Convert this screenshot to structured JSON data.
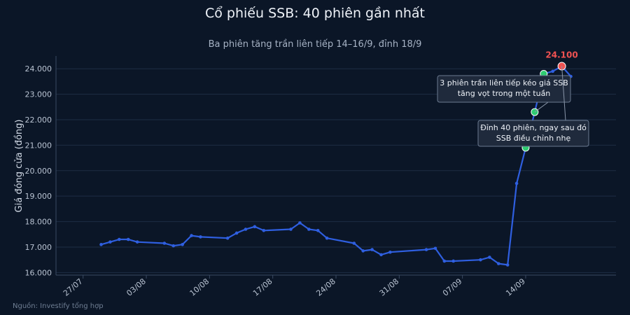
{
  "chart_data": {
    "type": "line",
    "title": "Cổ phiếu SSB: 40 phiên gần nhất",
    "subtitle": "Ba phiên tăng trần liên tiếp 14–16/9, đỉnh 18/9",
    "ylabel": "Giá đóng cửa (đồng)",
    "xlabel": "",
    "source": "Nguồn: Investify tổng hợp",
    "ylim": [
      15900,
      24500
    ],
    "yticks": [
      16000,
      17000,
      18000,
      19000,
      20000,
      21000,
      22000,
      23000,
      24000
    ],
    "ytick_labels": [
      "16.000",
      "17.000",
      "18.000",
      "19.000",
      "20.000",
      "21.000",
      "22.000",
      "23.000",
      "24.000"
    ],
    "xlim": [
      "2024-07-24",
      "2024-09-24"
    ],
    "xticks": [
      "2024-07-27",
      "2024-08-03",
      "2024-08-10",
      "2024-08-17",
      "2024-08-24",
      "2024-08-31",
      "2024-09-07",
      "2024-09-14"
    ],
    "xtick_labels": [
      "27/07",
      "03/08",
      "10/08",
      "17/08",
      "24/08",
      "31/08",
      "07/09",
      "14/09"
    ],
    "grid": true,
    "colors": {
      "line": "#2f5fe0",
      "marker_green": "#2ecc71",
      "marker_red": "#f05252",
      "grid": "#1e2d44",
      "annotation_bg": "#1f2a3c",
      "annotation_border": "#6b7a90"
    },
    "series": [
      {
        "x": [
          "2024-07-29",
          "2024-07-30",
          "2024-07-31",
          "2024-08-01",
          "2024-08-02",
          "2024-08-05",
          "2024-08-06",
          "2024-08-07",
          "2024-08-08",
          "2024-08-09",
          "2024-08-12",
          "2024-08-13",
          "2024-08-14",
          "2024-08-15",
          "2024-08-16",
          "2024-08-19",
          "2024-08-20",
          "2024-08-21",
          "2024-08-22",
          "2024-08-23",
          "2024-08-26",
          "2024-08-27",
          "2024-08-28",
          "2024-08-29",
          "2024-08-30",
          "2024-09-03",
          "2024-09-04",
          "2024-09-05",
          "2024-09-06",
          "2024-09-09",
          "2024-09-10",
          "2024-09-11",
          "2024-09-12",
          "2024-09-13",
          "2024-09-14",
          "2024-09-15",
          "2024-09-16",
          "2024-09-17",
          "2024-09-18",
          "2024-09-19"
        ],
        "values": [
          17100,
          17200,
          17300,
          17300,
          17200,
          17150,
          17050,
          17100,
          17450,
          17400,
          17350,
          17550,
          17700,
          17800,
          17650,
          17700,
          17950,
          17700,
          17650,
          17350,
          17150,
          16850,
          16900,
          16700,
          16800,
          16900,
          16950,
          16450,
          16450,
          16500,
          16600,
          16350,
          16300,
          19500,
          20900,
          22300,
          23800,
          23900,
          24100,
          23700
        ]
      }
    ],
    "highlight_points": [
      {
        "x": "2024-09-14",
        "y": 20900,
        "color": "green"
      },
      {
        "x": "2024-09-15",
        "y": 22300,
        "color": "green"
      },
      {
        "x": "2024-09-16",
        "y": 23800,
        "color": "green"
      },
      {
        "x": "2024-09-18",
        "y": 24100,
        "color": "red"
      }
    ],
    "peak_label": "24.100",
    "annotations": [
      {
        "lines": [
          "3 phiên trần liên tiếp kéo giá SSB",
          "tăng vọt trong một tuần"
        ]
      },
      {
        "lines": [
          "Đỉnh 40 phiên, ngay sau đó",
          "SSB điều chỉnh nhẹ"
        ]
      }
    ]
  }
}
